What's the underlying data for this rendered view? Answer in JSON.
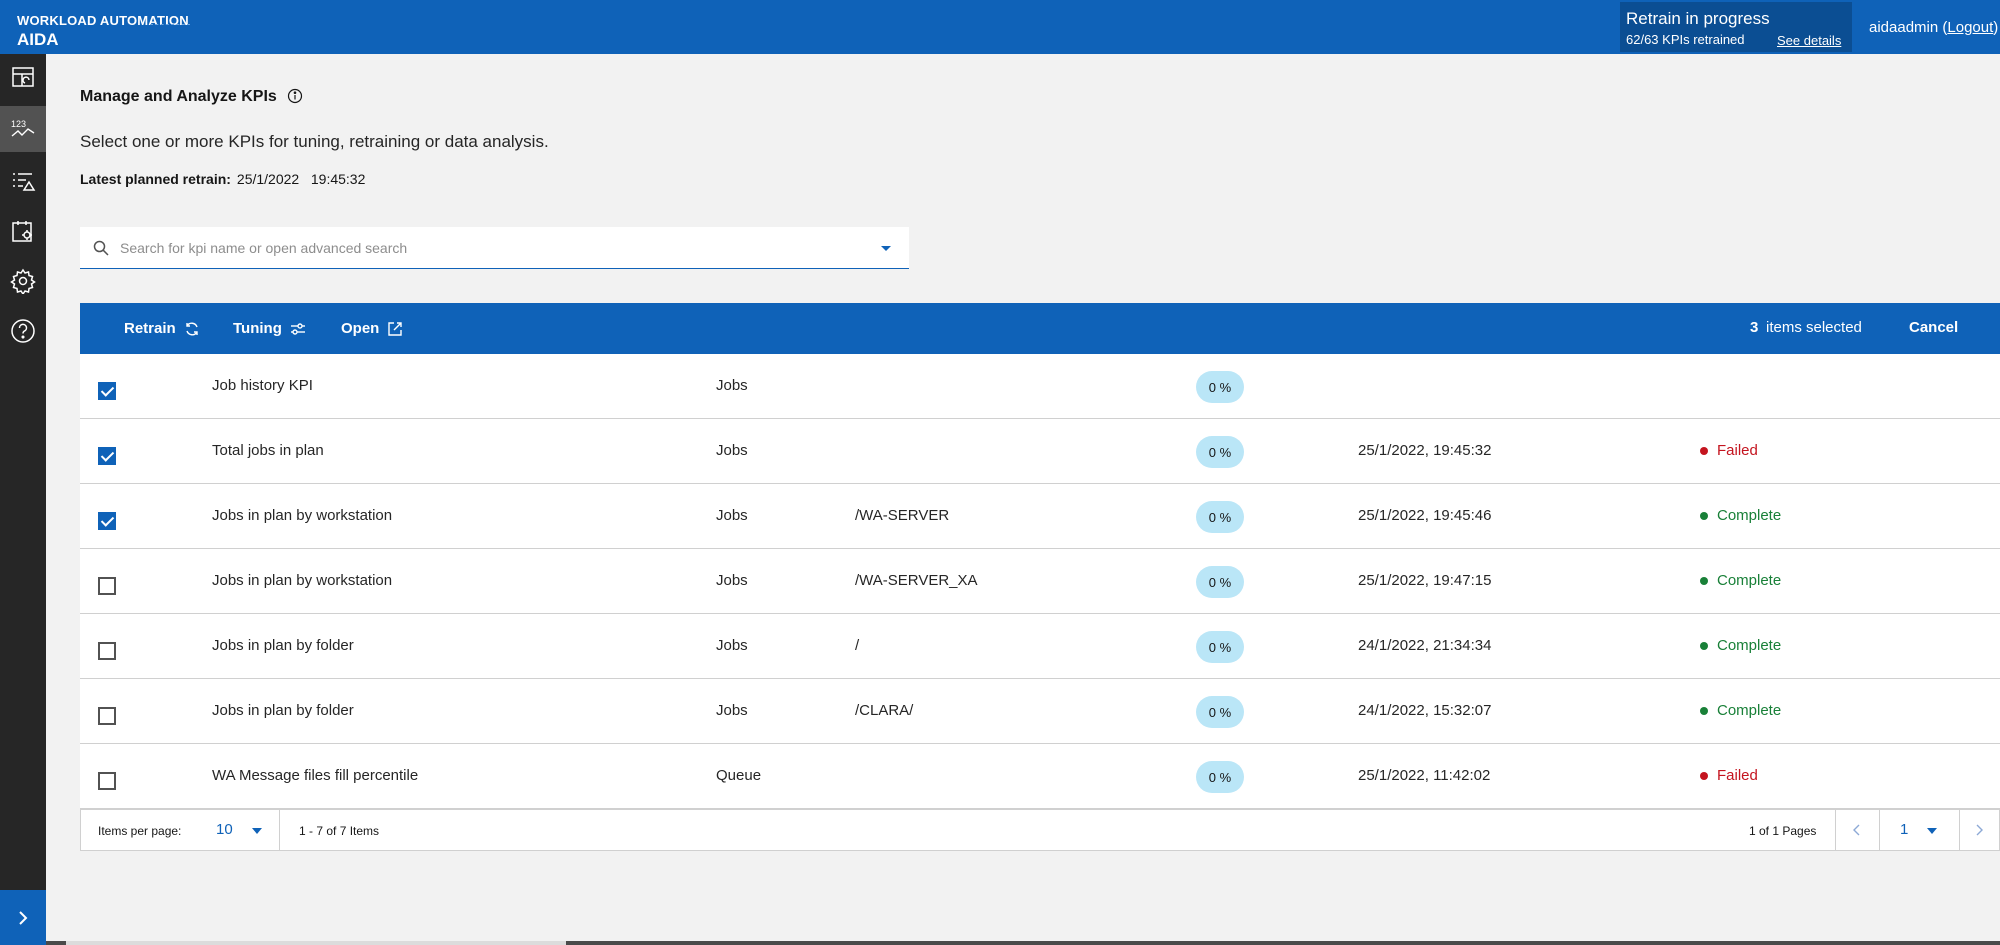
{
  "header": {
    "brand_top": "WORKLOAD AUTOMATION",
    "brand_bottom": "AIDA",
    "retrain_title": "Retrain in progress",
    "retrain_count": "62/63 KPIs retrained",
    "retrain_link": "See details",
    "user": "aidaadmin",
    "logout_open": " (",
    "logout": "Logout",
    "logout_close": ")"
  },
  "nav": {
    "items": [
      {
        "name": "dashboard-icon",
        "active": false
      },
      {
        "name": "kpi-icon",
        "active": true
      },
      {
        "name": "alerts-list-icon",
        "active": false
      },
      {
        "name": "calendar-settings-icon",
        "active": false
      },
      {
        "name": "gear-icon",
        "active": false
      },
      {
        "name": "help-icon",
        "active": false
      }
    ],
    "expand_icon": "chevron-right-icon"
  },
  "page": {
    "title": "Manage and Analyze KPIs",
    "subtitle": "Select one or more KPIs for tuning, retraining or data analysis.",
    "planned_label": "Latest planned retrain:",
    "planned_value": "25/1/2022   19:45:32"
  },
  "search": {
    "placeholder": "Search for kpi name or open advanced search",
    "value": ""
  },
  "actions": {
    "retrain": "Retrain",
    "tuning": "Tuning",
    "open": "Open",
    "selected_count": "3",
    "selected_text": "items selected",
    "cancel": "Cancel"
  },
  "rows": [
    {
      "checked": true,
      "name": "Job history KPI",
      "category": "Jobs",
      "resource": "",
      "percent": "0 %",
      "date": "",
      "status": "",
      "status_type": ""
    },
    {
      "checked": true,
      "name": "Total jobs in plan",
      "category": "Jobs",
      "resource": "",
      "percent": "0 %",
      "date": "25/1/2022, 19:45:32",
      "status": "Failed",
      "status_type": "failed"
    },
    {
      "checked": true,
      "name": "Jobs in plan by workstation",
      "category": "Jobs",
      "resource": "/WA-SERVER",
      "percent": "0 %",
      "date": "25/1/2022, 19:45:46",
      "status": "Complete",
      "status_type": "complete"
    },
    {
      "checked": false,
      "name": "Jobs in plan by workstation",
      "category": "Jobs",
      "resource": "/WA-SERVER_XA",
      "percent": "0 %",
      "date": "25/1/2022, 19:47:15",
      "status": "Complete",
      "status_type": "complete"
    },
    {
      "checked": false,
      "name": "Jobs in plan by folder",
      "category": "Jobs",
      "resource": "/",
      "percent": "0 %",
      "date": "24/1/2022, 21:34:34",
      "status": "Complete",
      "status_type": "complete"
    },
    {
      "checked": false,
      "name": "Jobs in plan by folder",
      "category": "Jobs",
      "resource": "/CLARA/",
      "percent": "0 %",
      "date": "24/1/2022, 15:32:07",
      "status": "Complete",
      "status_type": "complete"
    },
    {
      "checked": false,
      "name": "WA Message files fill percentile",
      "category": "Queue",
      "resource": "",
      "percent": "0 %",
      "date": "25/1/2022, 11:42:02",
      "status": "Failed",
      "status_type": "failed"
    }
  ],
  "pagination": {
    "items_per_page_label": "Items per page:",
    "items_per_page": "10",
    "range": "1 - 7 of 7 Items",
    "pages": "1 of 1 Pages",
    "current_page": "1"
  },
  "colors": {
    "brand": "#0f62b8",
    "failed": "#c4141f",
    "complete": "#198038",
    "percent_tag": "#bae6f7"
  }
}
